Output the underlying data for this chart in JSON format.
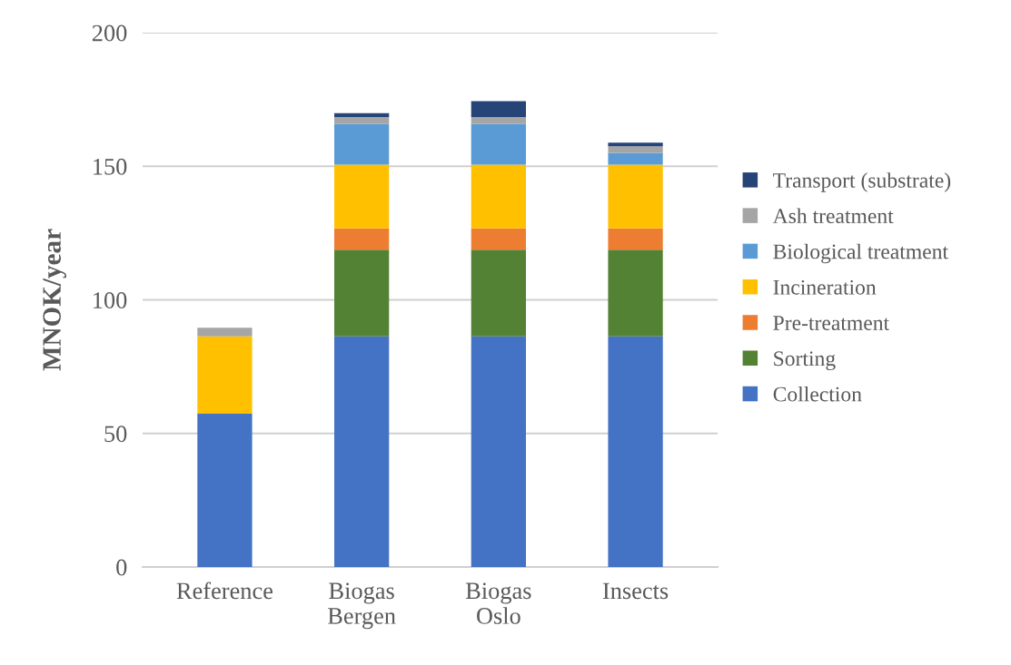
{
  "chart_data": {
    "type": "bar",
    "stacked": true,
    "ylabel": "MNOK/year",
    "categories": [
      "Reference",
      "Biogas\nBergen",
      "Biogas\nOslo",
      "Insects"
    ],
    "series": [
      {
        "name": "Collection",
        "color": "#4472c4",
        "values": [
          57.4,
          86.3,
          86.3,
          86.3
        ]
      },
      {
        "name": "Sorting",
        "color": "#548235",
        "values": [
          0,
          32.5,
          32.5,
          32.5
        ]
      },
      {
        "name": "Pre-treatment",
        "color": "#ed7d31",
        "values": [
          0,
          7.9,
          7.9,
          7.9
        ]
      },
      {
        "name": "Incineration",
        "color": "#ffc000",
        "values": [
          28.9,
          23.9,
          23.9,
          23.9
        ]
      },
      {
        "name": "Biological treatment",
        "color": "#5b9bd5",
        "values": [
          0,
          15.3,
          15.3,
          4.4
        ]
      },
      {
        "name": "Ash treatment",
        "color": "#a5a5a5",
        "values": [
          3.3,
          2.5,
          2.5,
          2.5
        ]
      },
      {
        "name": "Transport (substrate)",
        "color": "#264478",
        "values": [
          0,
          1.5,
          6.0,
          1.3
        ]
      }
    ],
    "ylim": [
      0,
      200
    ],
    "yticks": [
      0,
      50,
      100,
      150,
      200
    ],
    "grid": "y",
    "legend": "right"
  }
}
